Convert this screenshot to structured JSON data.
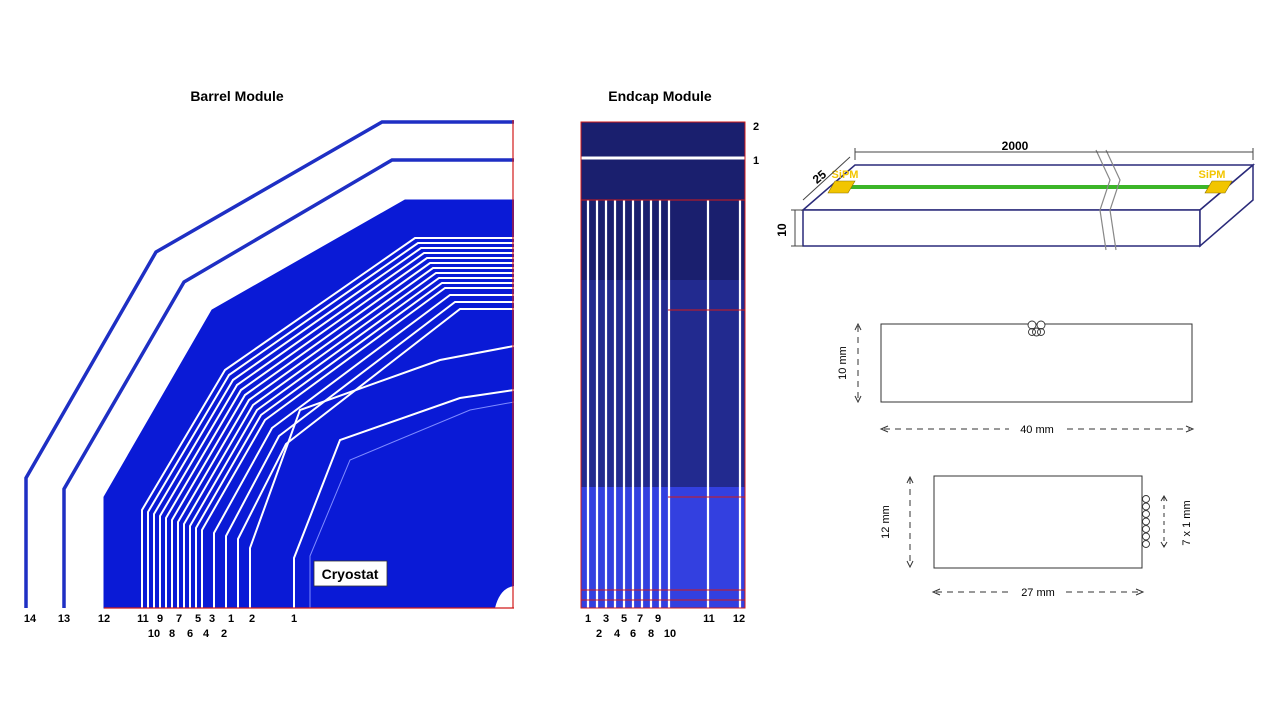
{
  "barrel": {
    "title": "Barrel Module",
    "cryostat_label": "Cryostat",
    "labels_top": [
      "14",
      "13",
      "12",
      "11",
      "9",
      "7",
      "5",
      "3",
      "1",
      "2",
      "1"
    ],
    "labels_bottom": [
      "10",
      "8",
      "6",
      "4",
      "2"
    ]
  },
  "endcap": {
    "title": "Endcap Module",
    "side_labels": [
      "2",
      "1"
    ],
    "labels_top": [
      "1",
      "3",
      "5",
      "7",
      "9",
      "11",
      "12"
    ],
    "labels_bottom": [
      "2",
      "4",
      "6",
      "8",
      "10"
    ]
  },
  "strip": {
    "length": "2000",
    "width": "25",
    "height": "10",
    "sensor_left": "SiPM",
    "sensor_right": "SiPM"
  },
  "section1": {
    "height": "10 mm",
    "width": "40 mm"
  },
  "section2": {
    "height": "12 mm",
    "width": "27 mm",
    "fibers": "7 x 1 mm"
  },
  "colors": {
    "absorber": "#0a1ad6",
    "endcap_dark": "#1a1f6e",
    "endcap_mid": "#222a8f",
    "endcap_light": "#3340e0",
    "fiber": "#3cb528",
    "sipm": "#f2c500",
    "outline": "#2a2a7a"
  }
}
